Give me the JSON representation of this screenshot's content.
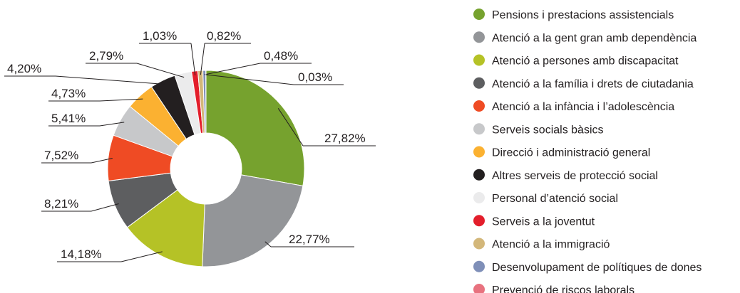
{
  "chart_data": {
    "type": "donut",
    "categories": [
      "Pensions i prestacions assistencials",
      "Atenció a la gent gran amb dependència",
      "Atenció a persones amb discapacitat",
      "Atenció a la família i drets de ciutadania",
      "Atenció a la infància i l’adolescència",
      "Serveis socials bàsics",
      "Direcció i administració general",
      "Altres serveis de protecció social",
      "Personal d’atenció social",
      "Serveis a la joventut",
      "Atenció a la immigració",
      "Desenvolupament de polítiques de dones",
      "Prevenció de riscos laborals"
    ],
    "values": [
      27.82,
      22.77,
      14.18,
      8.21,
      7.52,
      5.41,
      4.73,
      4.2,
      2.79,
      1.03,
      0.82,
      0.48,
      0.03
    ],
    "value_labels": [
      "27,82%",
      "22,77%",
      "14,18%",
      "8,21%",
      "7,52%",
      "5,41%",
      "4,73%",
      "4,20%",
      "2,79%",
      "1,03%",
      "0,82%",
      "0,48%",
      "0,03%"
    ],
    "colors": [
      "#76a22e",
      "#939598",
      "#b5c226",
      "#5d5e60",
      "#ef4b24",
      "#c7c8ca",
      "#fbb131",
      "#231f20",
      "#ebebec",
      "#e31e2b",
      "#d3b77a",
      "#7f8fb8",
      "#e8727f"
    ]
  }
}
